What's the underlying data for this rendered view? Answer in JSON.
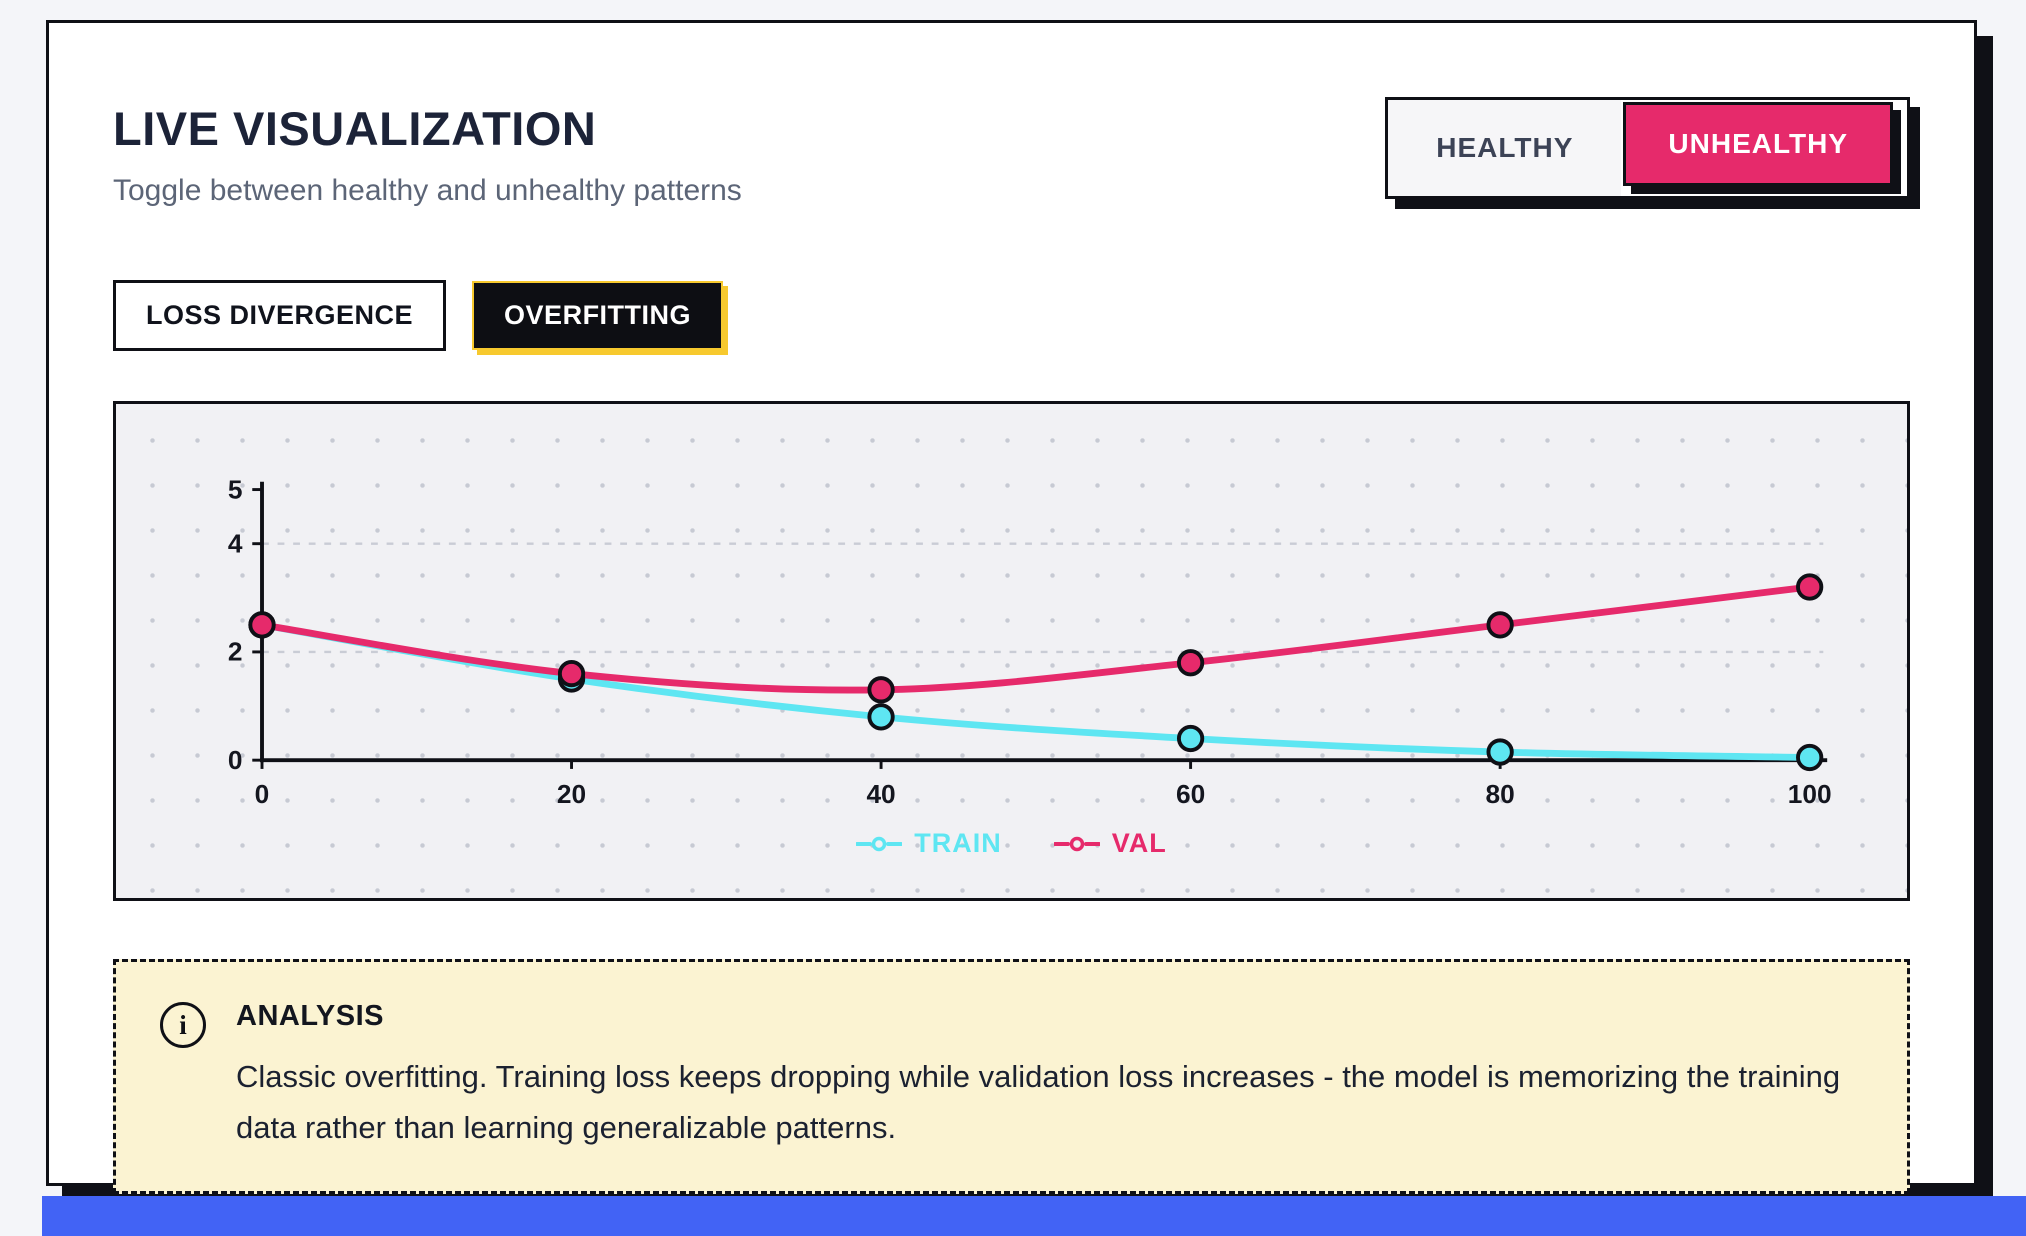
{
  "header": {
    "title": "LIVE VISUALIZATION",
    "subtitle": "Toggle between healthy and unhealthy patterns"
  },
  "toggle": {
    "options": [
      {
        "label": "HEALTHY",
        "active": false
      },
      {
        "label": "UNHEALTHY",
        "active": true
      }
    ]
  },
  "tabs": [
    {
      "label": "LOSS DIVERGENCE",
      "active": false
    },
    {
      "label": "OVERFITTING",
      "active": true
    }
  ],
  "chart_data": {
    "type": "line",
    "x": [
      0,
      20,
      40,
      60,
      80,
      100
    ],
    "xticks": [
      0,
      20,
      40,
      60,
      80,
      100
    ],
    "ylim": [
      0,
      5
    ],
    "yticks": [
      0,
      2,
      4,
      5
    ],
    "grid_y": [
      2,
      4
    ],
    "grid_style": "dashed horizontal",
    "legend_position": "bottom",
    "series": [
      {
        "name": "TRAIN",
        "color": "#5ee6f2",
        "values": [
          2.5,
          1.5,
          0.8,
          0.4,
          0.15,
          0.05
        ]
      },
      {
        "name": "VAL",
        "color": "#e62a6b",
        "values": [
          2.5,
          1.6,
          1.3,
          1.8,
          2.5,
          3.2
        ]
      }
    ]
  },
  "analysis": {
    "icon": "info-icon",
    "heading": "ANALYSIS",
    "text": "Classic overfitting. Training loss keeps dropping while validation loss increases - the model is memorizing the training data rather than learning generalizable patterns."
  },
  "colors": {
    "accent_pink": "#e62a6b",
    "accent_cyan": "#5ee6f2",
    "tab_highlight_yellow": "#f7c92e",
    "analysis_bg": "#fbf3d2",
    "footer_blue": "#4263f5",
    "ink": "#0f1016"
  }
}
